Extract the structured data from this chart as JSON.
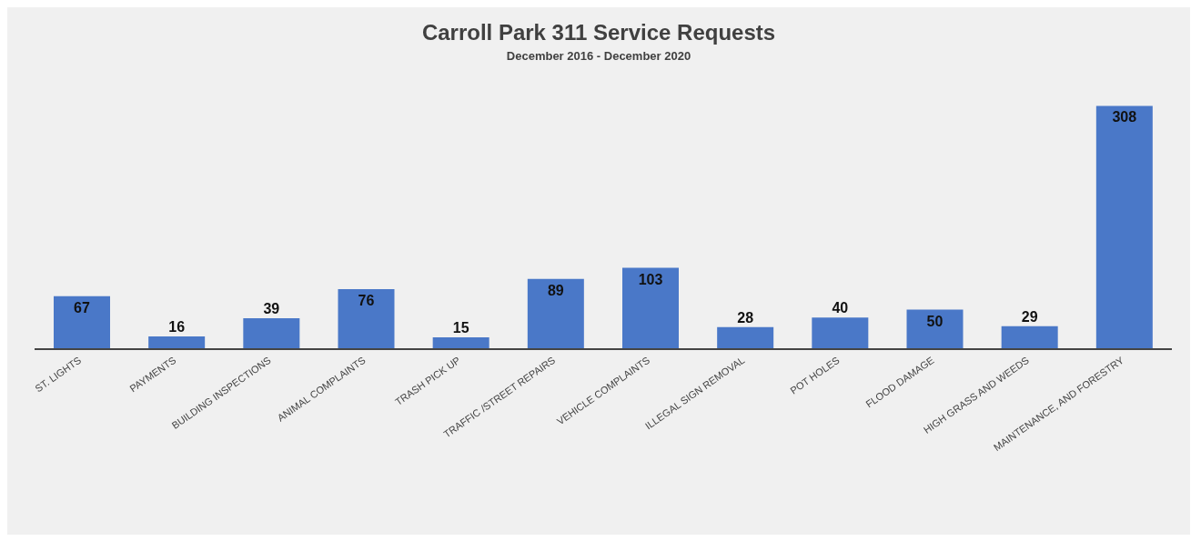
{
  "chart_data": {
    "type": "bar",
    "title": "Carroll Park 311 Service Requests",
    "subtitle": "December 2016 - December 2020",
    "categories": [
      "ST. LIGHTS",
      "PAYMENTS",
      "BUILDING INSPECTIONS",
      "ANIMAL COMPLAINTS",
      "TRASH PICK UP",
      "TRAFFIC /STREET REPAIRS",
      "VEHICLE COMPLAINTS",
      "ILLEGAL SIGN REMOVAL",
      "POT HOLES",
      "FLOOD DAMAGE",
      "HIGH GRASS AND WEEDS",
      "MAINTENANCE, AND FORESTRY"
    ],
    "values": [
      67,
      16,
      39,
      76,
      15,
      89,
      103,
      28,
      40,
      50,
      29,
      308
    ],
    "color": "#4a78c8",
    "tick_labels": "x",
    "data_labels": true
  }
}
